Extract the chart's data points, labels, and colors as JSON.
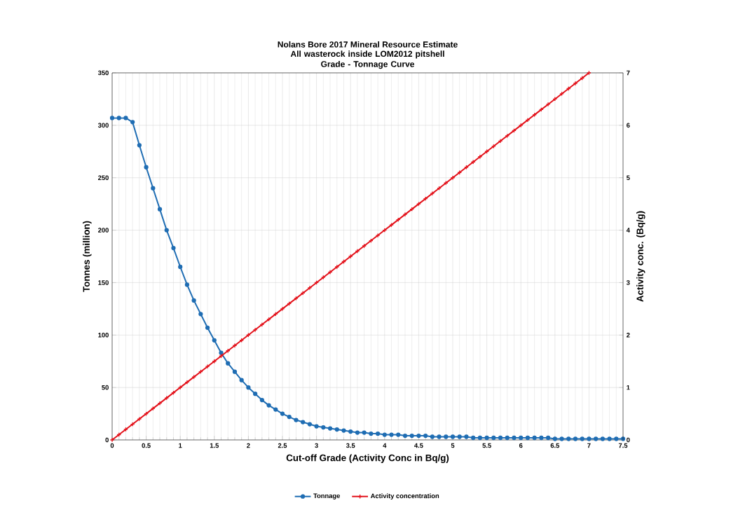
{
  "chart_data": {
    "type": "line",
    "title": "Nolans Bore 2017 Mineral Resource Estimate",
    "subtitle": "All wasterock inside LOM2012 pitshell\nGrade - Tonnage Curve",
    "xlabel": "Cut-off Grade (Activity Conc in Bq/g)",
    "ylabel": "Tonnes (million)",
    "y2label": "Activity conc. (Bq/g)",
    "x": [
      0,
      0.1,
      0.2,
      0.3,
      0.4,
      0.5,
      0.6,
      0.7,
      0.8,
      0.9,
      1,
      1.1,
      1.2,
      1.3,
      1.4,
      1.5,
      1.6,
      1.7,
      1.8,
      1.9,
      2,
      2.1,
      2.2,
      2.3,
      2.4,
      2.5,
      2.6,
      2.7,
      2.8,
      2.9,
      3,
      3.1,
      3.2,
      3.3,
      3.4,
      3.5,
      3.6,
      3.7,
      3.8,
      3.9,
      4,
      4.1,
      4.2,
      4.3,
      4.4,
      4.5,
      4.6,
      4.7,
      4.8,
      4.9,
      5,
      5.1,
      5.2,
      5.3,
      5.4,
      5.5,
      5.6,
      5.7,
      5.8,
      5.9,
      6,
      6.1,
      6.2,
      6.3,
      6.4,
      6.5,
      6.6,
      6.7,
      6.8,
      6.9,
      7,
      7.1,
      7.2,
      7.3,
      7.4,
      7.5
    ],
    "series": [
      {
        "name": "Tonnage",
        "color": "#1f6db3",
        "marker": "circle",
        "values": [
          307,
          307,
          307,
          303,
          281,
          260,
          240,
          220,
          200,
          183,
          165,
          148,
          133,
          120,
          107,
          95,
          83,
          73,
          65,
          57,
          50,
          44,
          38,
          33,
          29,
          25,
          22,
          19,
          17,
          15,
          13,
          12,
          11,
          10,
          9,
          8,
          7,
          7,
          6,
          6,
          5,
          5,
          5,
          4,
          4,
          4,
          4,
          3,
          3,
          3,
          3,
          3,
          3,
          2,
          2,
          2,
          2,
          2,
          2,
          2,
          2,
          2,
          2,
          2,
          2,
          1,
          1,
          1,
          1,
          1,
          1,
          1,
          1,
          1,
          1,
          1
        ]
      },
      {
        "name": "Activity concentration",
        "color": "#e3121b",
        "marker": "cross",
        "axis": "y2",
        "x": [
          0,
          0.1,
          0.2,
          0.3,
          0.4,
          0.5,
          0.6,
          0.7,
          0.8,
          0.9,
          1,
          1.1,
          1.2,
          1.3,
          1.4,
          1.5,
          1.6,
          1.7,
          1.8,
          1.9,
          2,
          2.1,
          2.2,
          2.3,
          2.4,
          2.5,
          2.6,
          2.7,
          2.8,
          2.9,
          3,
          3.1,
          3.2,
          3.3,
          3.4,
          3.5,
          3.6,
          3.7,
          3.8,
          3.9,
          4,
          4.1,
          4.2,
          4.3,
          4.4,
          4.5,
          4.6,
          4.7,
          4.8,
          4.9,
          5,
          5.1,
          5.2,
          5.3,
          5.4,
          5.5,
          5.6,
          5.7,
          5.8,
          5.9,
          6,
          6.1,
          6.2,
          6.3,
          6.4,
          6.5,
          6.6,
          6.7,
          6.8,
          6.9,
          7
        ],
        "values": [
          0,
          0.1,
          0.2,
          0.3,
          0.4,
          0.5,
          0.6,
          0.7,
          0.8,
          0.9,
          1,
          1.1,
          1.2,
          1.3,
          1.4,
          1.5,
          1.6,
          1.7,
          1.8,
          1.9,
          2,
          2.1,
          2.2,
          2.3,
          2.4,
          2.5,
          2.6,
          2.7,
          2.8,
          2.9,
          3,
          3.1,
          3.2,
          3.3,
          3.4,
          3.5,
          3.6,
          3.7,
          3.8,
          3.9,
          4,
          4.1,
          4.2,
          4.3,
          4.4,
          4.5,
          4.6,
          4.7,
          4.8,
          4.9,
          5,
          5.1,
          5.2,
          5.3,
          5.4,
          5.5,
          5.6,
          5.7,
          5.8,
          5.9,
          6,
          6.1,
          6.2,
          6.3,
          6.4,
          6.5,
          6.6,
          6.7,
          6.8,
          6.9,
          7
        ]
      }
    ],
    "xlim": [
      0,
      7.5
    ],
    "xticks": [
      0,
      0.5,
      1,
      1.5,
      2,
      2.5,
      3,
      3.5,
      4,
      4.5,
      5,
      5.5,
      6,
      6.5,
      7,
      7.5
    ],
    "ylim": [
      0,
      350
    ],
    "yticks": [
      0,
      50,
      100,
      150,
      200,
      250,
      300,
      350
    ],
    "y2lim": [
      0,
      7
    ],
    "y2ticks": [
      0,
      1,
      2,
      3,
      4,
      5,
      6,
      7
    ],
    "grid": true,
    "legend": "bottom"
  }
}
